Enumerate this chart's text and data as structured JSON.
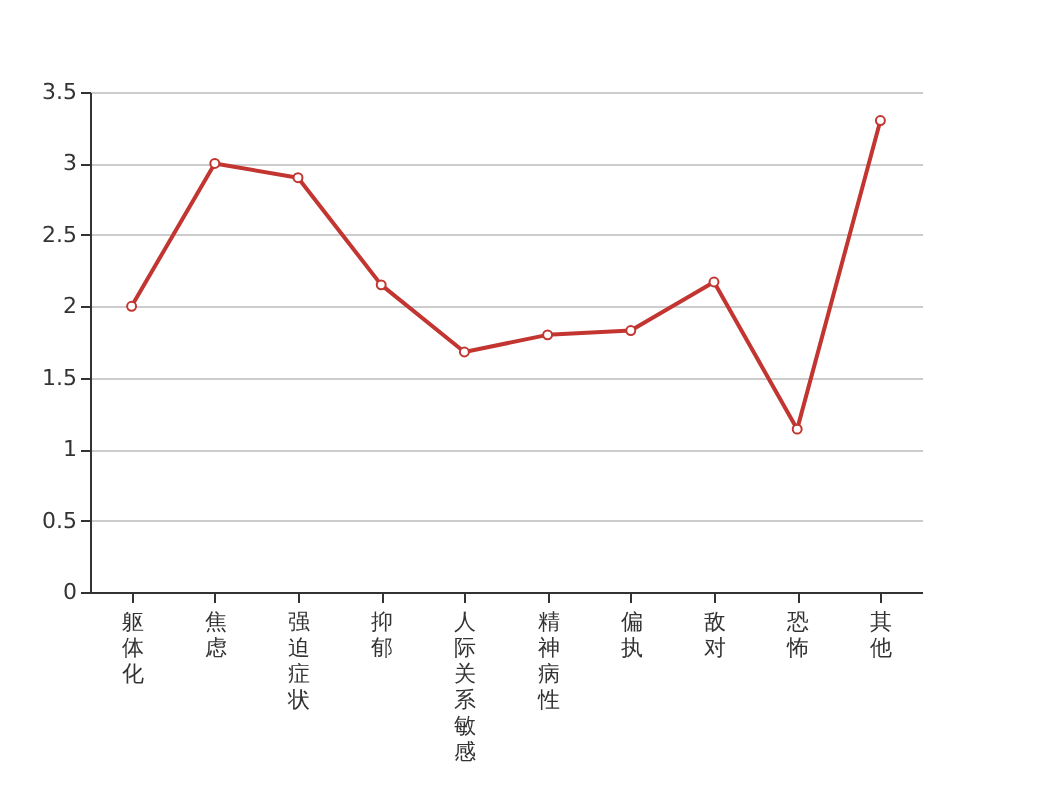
{
  "chart_data": {
    "type": "line",
    "categories": [
      "躯体化",
      "焦虑",
      "强迫症状",
      "抑郁",
      "人际关系敏感",
      "精神病性",
      "偏执",
      "敌对",
      "恐怖",
      "其他"
    ],
    "series": [
      {
        "color": "#c23531",
        "values": [
          2.0,
          3.0,
          2.9,
          2.15,
          1.68,
          1.8,
          1.83,
          2.17,
          1.14,
          3.3
        ]
      }
    ],
    "ylim": [
      0,
      3.5
    ],
    "yticks": [
      0,
      0.5,
      1,
      1.5,
      2,
      2.5,
      3,
      3.5
    ],
    "grid": "y",
    "marker": "circle",
    "line_style": "solid"
  }
}
